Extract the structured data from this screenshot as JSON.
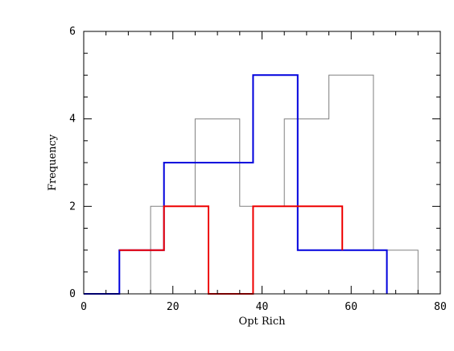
{
  "chart_data": {
    "type": "step-histogram",
    "xlabel": "Opt Rich",
    "ylabel": "Frequency",
    "xlim": [
      0,
      80
    ],
    "ylim": [
      0,
      6
    ],
    "x_ticks": [
      0,
      20,
      40,
      60,
      80
    ],
    "y_ticks": [
      0,
      2,
      4,
      6
    ],
    "grid": false,
    "legend": "none",
    "series": [
      {
        "color": "#808080",
        "bin_edges": [
          15,
          25,
          35,
          45,
          55,
          65,
          75
        ],
        "counts": [
          2,
          4,
          2,
          4,
          5,
          1
        ],
        "baseline_start": 0
      },
      {
        "color": "#0000dd",
        "bin_edges": [
          -2,
          8,
          18,
          28,
          38,
          48,
          58,
          68
        ],
        "counts": [
          0,
          1,
          3,
          3,
          5,
          1,
          1
        ]
      },
      {
        "color": "#ee0000",
        "bin_edges": [
          8,
          18,
          28,
          38,
          48,
          58
        ],
        "counts": [
          1,
          2,
          0,
          2,
          2
        ],
        "end_level": 1
      }
    ]
  }
}
